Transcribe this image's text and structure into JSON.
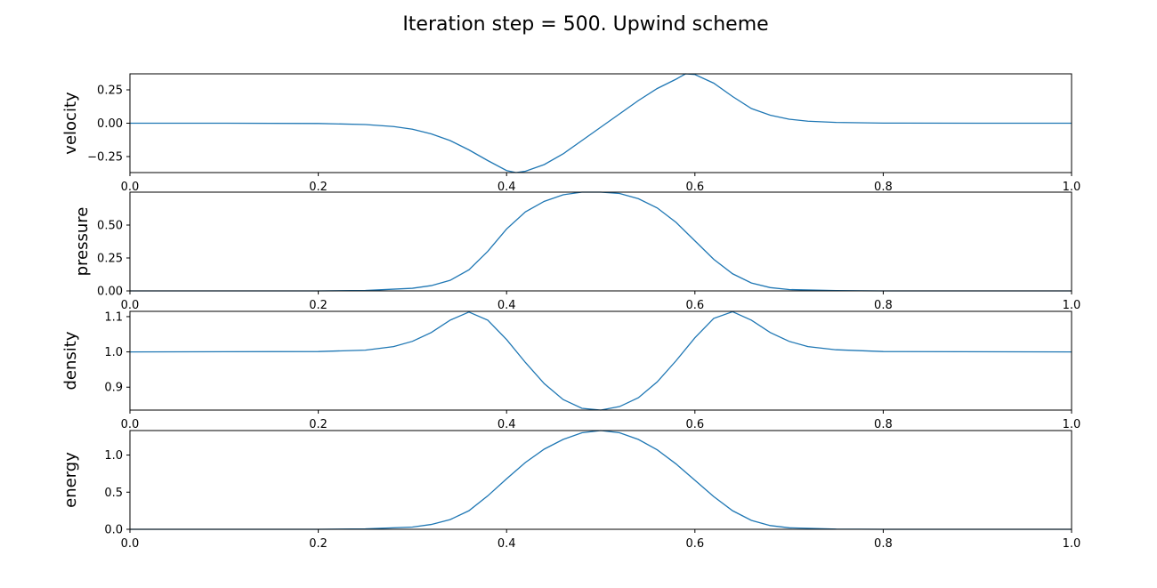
{
  "title": "Iteration step = 500. Upwind scheme",
  "colors": {
    "line": "#1f77b4",
    "axes": "#000000"
  },
  "chart_data": [
    {
      "type": "line",
      "ylabel": "velocity",
      "xlim": [
        0.0,
        1.0
      ],
      "ylim": [
        -0.37,
        0.37
      ],
      "xticks": [
        0.0,
        0.2,
        0.4,
        0.6,
        0.8,
        1.0
      ],
      "xtick_labels": [
        "0.0",
        "0.2",
        "0.4",
        "0.6",
        "0.8",
        "1.0"
      ],
      "yticks": [
        -0.25,
        0.0,
        0.25
      ],
      "ytick_labels": [
        "−0.25",
        "0.00",
        "0.25"
      ],
      "series": [
        {
          "x": [
            0.0,
            0.1,
            0.2,
            0.25,
            0.28,
            0.3,
            0.32,
            0.34,
            0.36,
            0.38,
            0.4,
            0.41,
            0.42,
            0.44,
            0.46,
            0.48,
            0.5,
            0.52,
            0.54,
            0.56,
            0.58,
            0.59,
            0.6,
            0.62,
            0.64,
            0.66,
            0.68,
            0.7,
            0.72,
            0.75,
            0.8,
            0.9,
            1.0
          ],
          "y": [
            0.0,
            0.0,
            -0.002,
            -0.01,
            -0.025,
            -0.045,
            -0.08,
            -0.13,
            -0.2,
            -0.28,
            -0.355,
            -0.37,
            -0.36,
            -0.31,
            -0.23,
            -0.13,
            -0.03,
            0.07,
            0.17,
            0.26,
            0.33,
            0.37,
            0.365,
            0.3,
            0.2,
            0.11,
            0.06,
            0.03,
            0.015,
            0.006,
            0.001,
            0.0,
            0.0
          ]
        }
      ]
    },
    {
      "type": "line",
      "ylabel": "pressure",
      "xlim": [
        0.0,
        1.0
      ],
      "ylim": [
        0.0,
        0.75
      ],
      "xticks": [
        0.0,
        0.2,
        0.4,
        0.6,
        0.8,
        1.0
      ],
      "xtick_labels": [
        "0.0",
        "0.2",
        "0.4",
        "0.6",
        "0.8",
        "1.0"
      ],
      "yticks": [
        0.0,
        0.25,
        0.5
      ],
      "ytick_labels": [
        "0.00",
        "0.25",
        "0.50"
      ],
      "series": [
        {
          "x": [
            0.0,
            0.2,
            0.25,
            0.3,
            0.32,
            0.34,
            0.36,
            0.38,
            0.4,
            0.42,
            0.44,
            0.46,
            0.48,
            0.5,
            0.52,
            0.54,
            0.56,
            0.58,
            0.6,
            0.62,
            0.64,
            0.66,
            0.68,
            0.7,
            0.75,
            0.8,
            1.0
          ],
          "y": [
            0.0,
            0.0,
            0.003,
            0.02,
            0.04,
            0.08,
            0.16,
            0.3,
            0.47,
            0.6,
            0.68,
            0.73,
            0.75,
            0.75,
            0.74,
            0.7,
            0.63,
            0.52,
            0.38,
            0.24,
            0.13,
            0.06,
            0.025,
            0.01,
            0.002,
            0.0,
            0.0
          ]
        }
      ]
    },
    {
      "type": "line",
      "ylabel": "density",
      "xlim": [
        0.0,
        1.0
      ],
      "ylim": [
        0.835,
        1.115
      ],
      "xticks": [
        0.0,
        0.2,
        0.4,
        0.6,
        0.8,
        1.0
      ],
      "xtick_labels": [
        "0.0",
        "0.2",
        "0.4",
        "0.6",
        "0.8",
        "1.0"
      ],
      "yticks": [
        0.9,
        1.0,
        1.1
      ],
      "ytick_labels": [
        "0.9",
        "1.0",
        "1.1"
      ],
      "series": [
        {
          "x": [
            0.0,
            0.2,
            0.25,
            0.28,
            0.3,
            0.32,
            0.34,
            0.36,
            0.38,
            0.4,
            0.42,
            0.44,
            0.46,
            0.48,
            0.5,
            0.52,
            0.54,
            0.56,
            0.58,
            0.6,
            0.62,
            0.64,
            0.66,
            0.68,
            0.7,
            0.72,
            0.75,
            0.8,
            1.0
          ],
          "y": [
            1.0,
            1.001,
            1.005,
            1.015,
            1.03,
            1.055,
            1.09,
            1.113,
            1.09,
            1.035,
            0.97,
            0.91,
            0.865,
            0.84,
            0.835,
            0.845,
            0.87,
            0.915,
            0.975,
            1.04,
            1.095,
            1.114,
            1.09,
            1.055,
            1.03,
            1.015,
            1.006,
            1.001,
            1.0
          ]
        }
      ]
    },
    {
      "type": "line",
      "ylabel": "energy",
      "xlim": [
        0.0,
        1.0
      ],
      "ylim": [
        0.0,
        1.33
      ],
      "xticks": [
        0.0,
        0.2,
        0.4,
        0.6,
        0.8,
        1.0
      ],
      "xtick_labels": [
        "0.0",
        "0.2",
        "0.4",
        "0.6",
        "0.8",
        "1.0"
      ],
      "yticks": [
        0.0,
        0.5,
        1.0
      ],
      "ytick_labels": [
        "0.0",
        "0.5",
        "1.0"
      ],
      "series": [
        {
          "x": [
            0.0,
            0.2,
            0.25,
            0.3,
            0.32,
            0.34,
            0.36,
            0.38,
            0.4,
            0.42,
            0.44,
            0.46,
            0.48,
            0.5,
            0.52,
            0.54,
            0.56,
            0.58,
            0.6,
            0.62,
            0.64,
            0.66,
            0.68,
            0.7,
            0.75,
            0.8,
            1.0
          ],
          "y": [
            0.0,
            0.0,
            0.005,
            0.03,
            0.065,
            0.13,
            0.25,
            0.45,
            0.68,
            0.9,
            1.08,
            1.21,
            1.3,
            1.33,
            1.3,
            1.21,
            1.07,
            0.88,
            0.66,
            0.44,
            0.25,
            0.12,
            0.05,
            0.02,
            0.003,
            0.0,
            0.0
          ]
        }
      ]
    }
  ]
}
